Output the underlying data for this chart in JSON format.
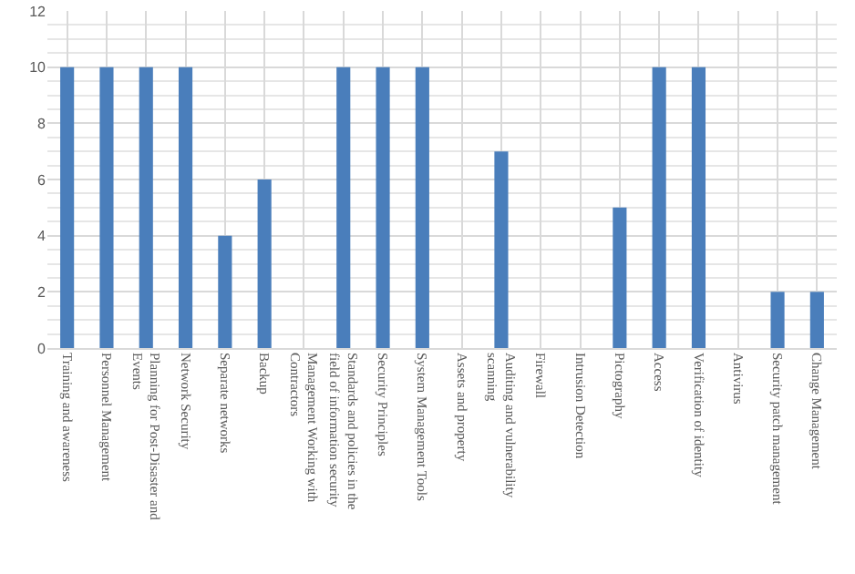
{
  "chart_data": {
    "type": "bar",
    "categories": [
      "Training and awareness",
      "Personnel Management",
      "Planning for Post-Disaster and Events",
      "Network Security",
      "Separate networks",
      "Backup",
      "Management Working with Contractors",
      "Standards and policies in the field of information security",
      "Security Principles",
      "System Management Tools",
      "Assets and property",
      "Auditing and vulnerability scanning",
      "Firewall",
      "Intrusion Detection",
      "Pictography",
      "Access",
      "Verification of identity",
      "Antivirus",
      "Security patch management",
      "Change Management"
    ],
    "values": [
      10,
      10,
      10,
      10,
      4,
      6,
      0,
      10,
      10,
      10,
      0,
      7,
      0,
      0,
      5,
      10,
      10,
      0,
      2,
      2
    ],
    "color": "#4a7ebb",
    "ylim": [
      0,
      12
    ],
    "yticks": [
      0,
      2,
      4,
      6,
      8,
      10,
      12
    ],
    "grid": true,
    "legend": false
  }
}
